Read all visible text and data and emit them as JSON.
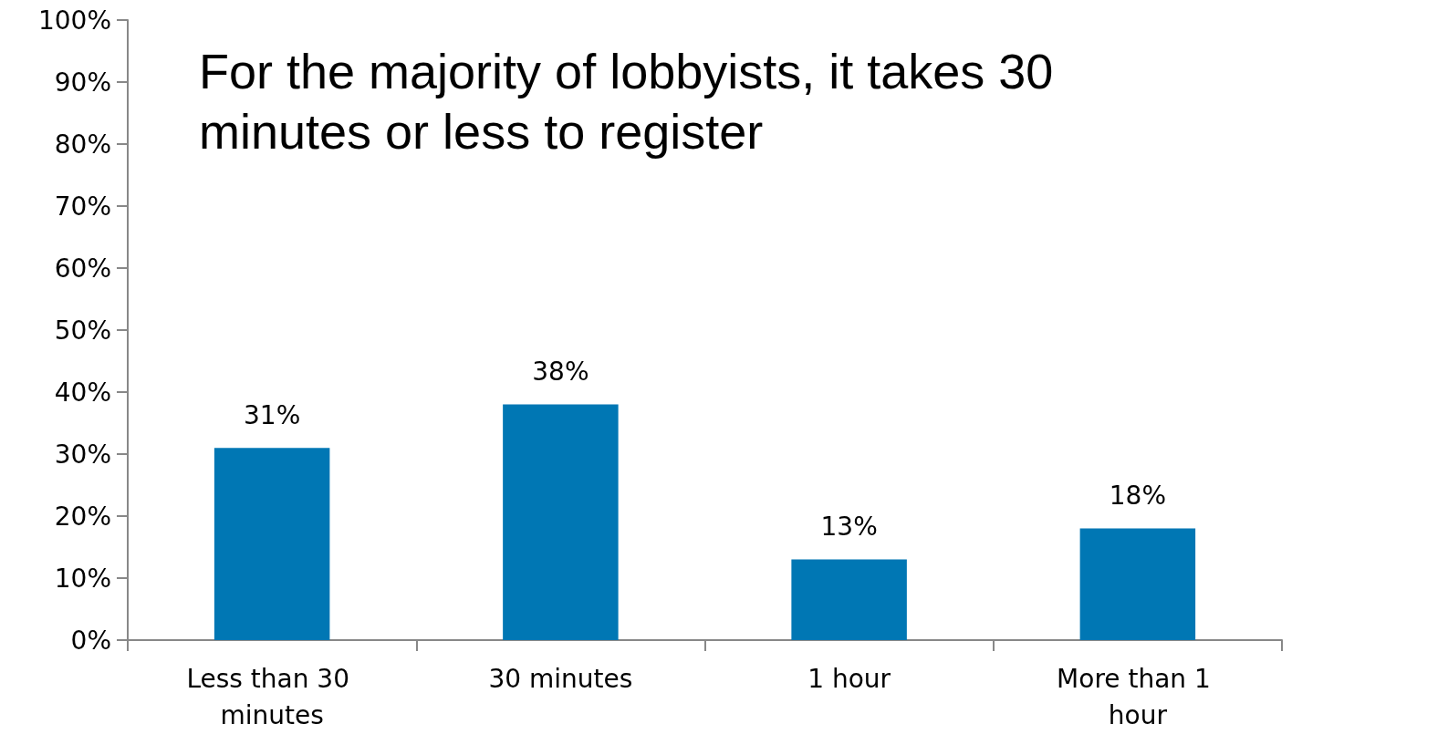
{
  "chart_data": {
    "type": "bar",
    "title": "For the majority of lobbyists, it takes 30 minutes or less to register",
    "categories": [
      "Less than 30 minutes",
      "30 minutes",
      "1 hour",
      "More than 1 hour"
    ],
    "values": [
      31,
      38,
      13,
      18
    ],
    "value_labels": [
      "31%",
      "38%",
      "13%",
      "18%"
    ],
    "color": "#0077b4",
    "ylim": [
      0,
      100
    ],
    "yticks": [
      {
        "value": 0,
        "label": "0%"
      },
      {
        "value": 10,
        "label": "10%"
      },
      {
        "value": 20,
        "label": "20%"
      },
      {
        "value": 30,
        "label": "30%"
      },
      {
        "value": 40,
        "label": "40%"
      },
      {
        "value": 50,
        "label": "50%"
      },
      {
        "value": 60,
        "label": "60%"
      },
      {
        "value": 70,
        "label": "70%"
      },
      {
        "value": 80,
        "label": "80%"
      },
      {
        "value": 90,
        "label": "90%"
      },
      {
        "value": 100,
        "label": "100%"
      }
    ],
    "grid": false
  }
}
